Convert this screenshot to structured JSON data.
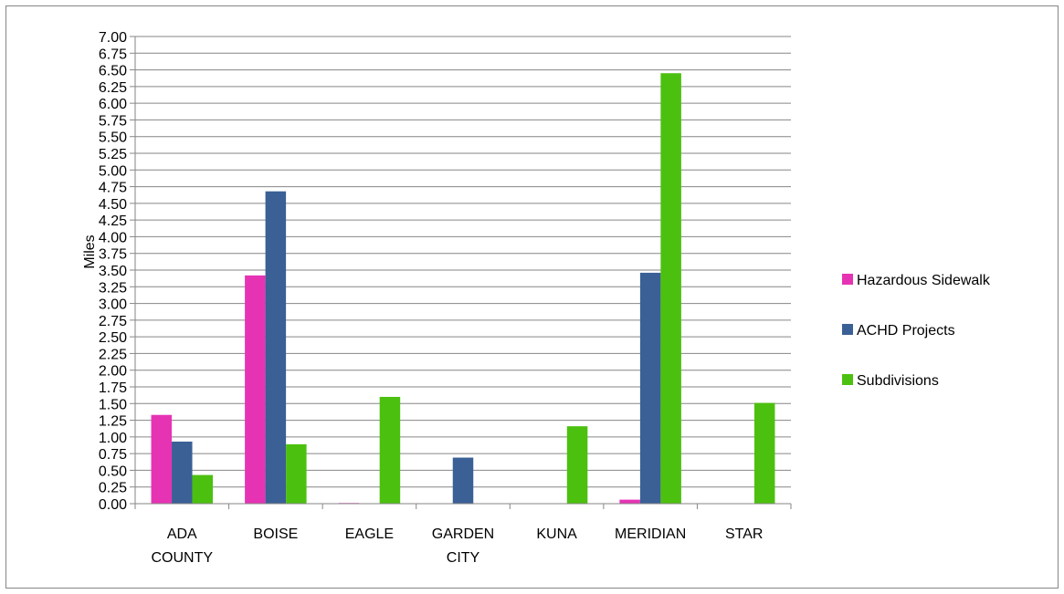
{
  "chart_data": {
    "type": "bar",
    "categories": [
      "ADA COUNTY",
      "BOISE",
      "EAGLE",
      "GARDEN CITY",
      "KUNA",
      "MERIDIAN",
      "STAR"
    ],
    "category_lines": [
      [
        "ADA",
        "COUNTY"
      ],
      [
        "BOISE"
      ],
      [
        "EAGLE"
      ],
      [
        "GARDEN",
        "CITY"
      ],
      [
        "KUNA"
      ],
      [
        "MERIDIAN"
      ],
      [
        "STAR"
      ]
    ],
    "series": [
      {
        "name": "Hazardous Sidewalk",
        "color": "#e633b4",
        "values": [
          1.33,
          3.42,
          0.01,
          0.0,
          0.0,
          0.06,
          0.0
        ]
      },
      {
        "name": "ACHD Projects",
        "color": "#3a6096",
        "values": [
          0.93,
          4.68,
          0.0,
          0.69,
          0.0,
          3.46,
          0.0
        ]
      },
      {
        "name": "Subdivisions",
        "color": "#4cc00f",
        "values": [
          0.43,
          0.89,
          1.6,
          0.0,
          1.16,
          6.45,
          1.51
        ]
      }
    ],
    "ylabel": "Miles",
    "ylim": [
      0,
      7
    ],
    "y_step": 0.25,
    "grid": true,
    "legend_position": "right"
  }
}
